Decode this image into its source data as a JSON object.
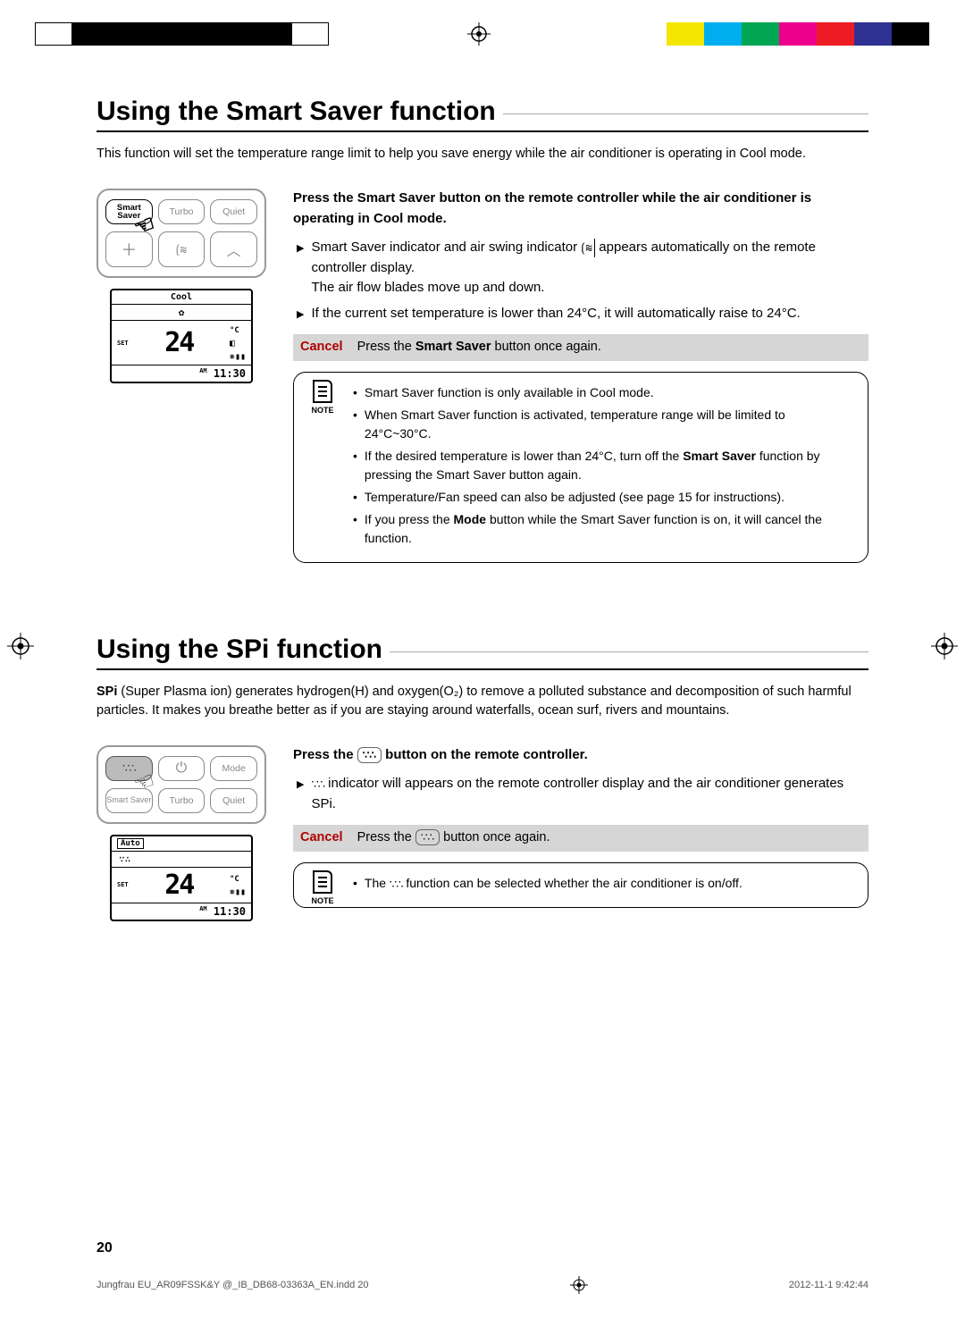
{
  "print": {
    "colorbar": [
      "#ffffff",
      "#f4e600",
      "#00aeef",
      "#00a651",
      "#ec008c",
      "#ed1c24",
      "#2e3192",
      "#000000"
    ],
    "file": "Jungfrau EU_AR09FSSK&Y @_IB_DB68-03363A_EN.indd   20",
    "datetime": "2012-11-1   9:42:44"
  },
  "page_number": "20",
  "section1": {
    "title": "Using the Smart Saver function",
    "intro": "This function will set the temperature range limit to help you save energy while the air conditioner is operating in Cool mode.",
    "remote_row1": [
      "Smart Saver",
      "Turbo",
      "Quiet"
    ],
    "remote_row2_icons": [
      "plus",
      "swing",
      "up"
    ],
    "lcd": {
      "mode": "Cool",
      "set_label": "SET",
      "temp": "24",
      "unit": "°C",
      "am": "AM",
      "time": "11:30"
    },
    "instr_prefix": "Press the ",
    "instr_bold": "Smart Saver",
    "instr_suffix": " button on the remote controller while the air conditioner is operating in Cool mode.",
    "b1a": "Smart Saver indicator and air swing indicator ",
    "b1b": " appears automatically on the remote controller display.",
    "b1c": "The air flow blades move up and down.",
    "b2": "If the current set temperature is lower than 24°C, it will automatically raise to 24°C.",
    "cancel_label": "Cancel",
    "cancel_pre": "Press the ",
    "cancel_bold": "Smart Saver",
    "cancel_post": " button once again.",
    "note_label": "NOTE",
    "notes": [
      "Smart Saver function is only available in Cool mode.",
      "When Smart Saver function is activated, temperature range will be limited to 24°C~30°C.",
      "If the desired temperature is lower than 24°C, turn off the Smart Saver function by pressing the Smart Saver button again.",
      "Temperature/Fan speed can also be adjusted (see page 15 for instructions).",
      "If you press the Mode button while the Smart Saver function is on, it will cancel the function."
    ],
    "notes_bold": {
      "2": "Smart Saver",
      "4": "Mode"
    }
  },
  "section2": {
    "title_pre": "Using the ",
    "title_bold": "SPi",
    "title_post": " function",
    "intro_bold": "SPi",
    "intro_rest": " (Super Plasma ion) generates hydrogen(H) and oxygen(O₂) to remove a polluted substance and decomposition of such harmful particles. It makes you breathe better as if you are staying around waterfalls, ocean surf, rivers and mountains.",
    "remote_row1": [
      "spi",
      "power",
      "Mode"
    ],
    "remote_row2": [
      "Smart Saver",
      "Turbo",
      "Quiet"
    ],
    "lcd": {
      "mode": "Auto",
      "set_label": "SET",
      "temp": "24",
      "unit": "°C",
      "am": "AM",
      "time": "11:30"
    },
    "instr_pre": "Press the ",
    "instr_post": " button on the remote controller.",
    "b1a": " indicator will appears on the remote controller display and the air conditioner generates SPi.",
    "cancel_label": "Cancel",
    "cancel_pre": "Press the ",
    "cancel_post": " button once again.",
    "note_label": "NOTE",
    "note1_pre": "The ",
    "note1_post": " function can be selected whether the air conditioner is on/off."
  }
}
